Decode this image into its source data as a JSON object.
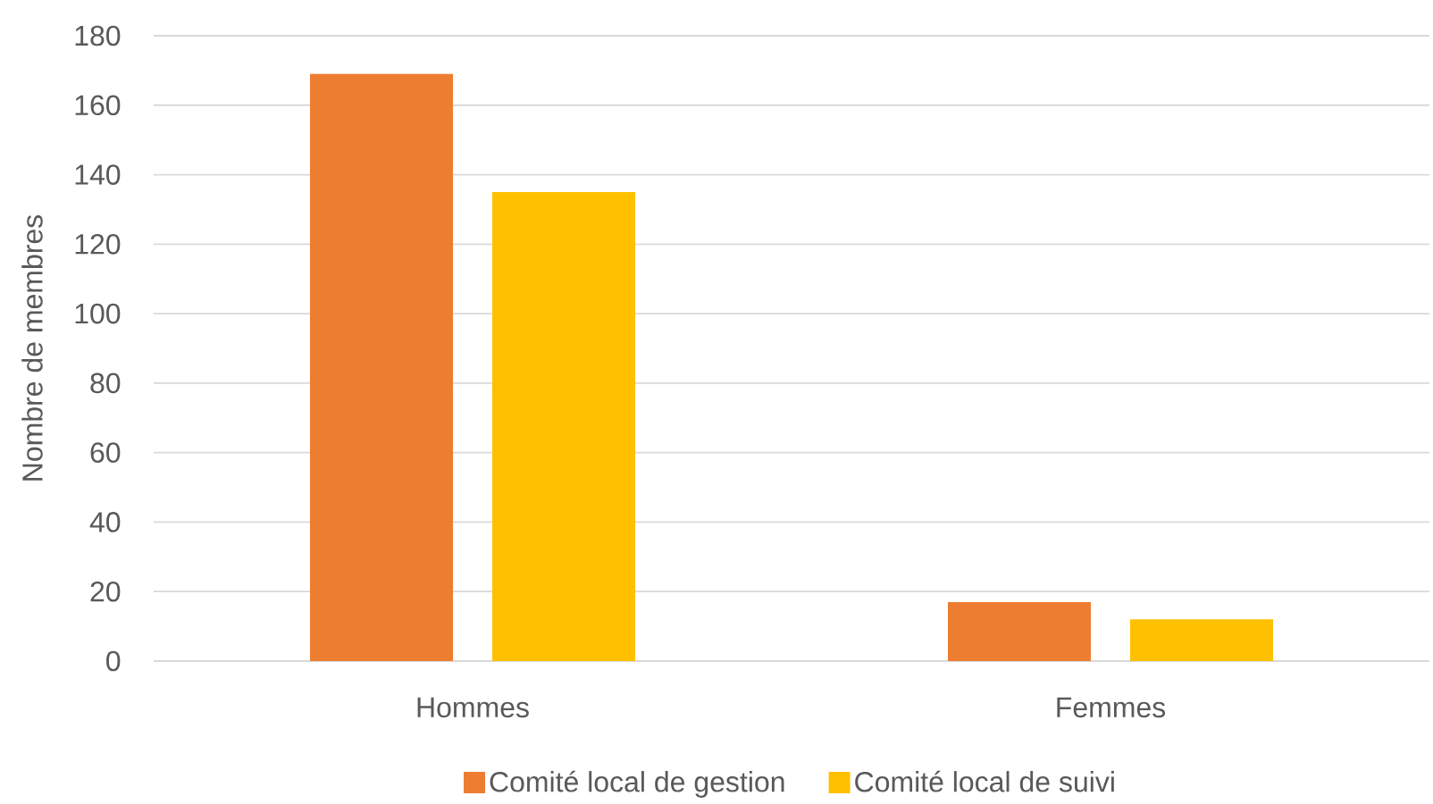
{
  "chart_data": {
    "type": "bar",
    "ylabel": "Nombre de membres",
    "categories": [
      "Hommes",
      "Femmes"
    ],
    "series": [
      {
        "name": "Comité local de gestion",
        "color": "#ed7d31",
        "values": [
          169,
          17
        ]
      },
      {
        "name": "Comité local de suivi",
        "color": "#ffc000",
        "values": [
          135,
          12
        ]
      }
    ],
    "ylim": [
      0,
      180
    ],
    "yticks": [
      0,
      20,
      40,
      60,
      80,
      100,
      120,
      140,
      160,
      180
    ],
    "grid": "y",
    "legend": "bottom"
  }
}
